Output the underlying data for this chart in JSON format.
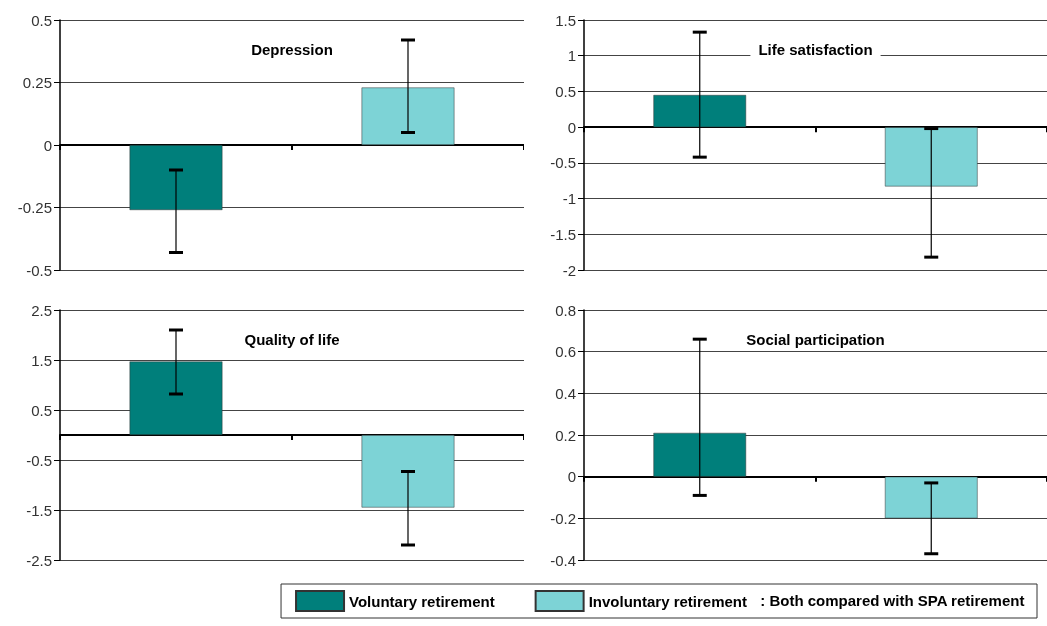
{
  "chart_data": [
    {
      "type": "bar",
      "title": "Depression",
      "categories": [
        null,
        null
      ],
      "ylim": [
        -0.5,
        0.5
      ],
      "yticks": [
        -0.5,
        -0.25,
        0,
        0.25,
        0.5
      ],
      "grid": "y",
      "legend": false,
      "tick_labels": "y",
      "series": [
        {
          "color": "#007f7b",
          "values": [
            -0.26,
            null
          ],
          "errors": [
            [
              -0.43,
              -0.1
            ],
            null
          ]
        },
        {
          "color": "#7dd3d6",
          "values": [
            null,
            0.23
          ],
          "errors": [
            null,
            [
              0.05,
              0.42
            ]
          ]
        }
      ]
    },
    {
      "type": "bar",
      "title": "Life satisfaction",
      "categories": [
        null,
        null
      ],
      "ylim": [
        -2,
        1.5
      ],
      "yticks": [
        -2,
        -1.5,
        -1,
        -0.5,
        0,
        0.5,
        1,
        1.5
      ],
      "grid": "y",
      "legend": false,
      "tick_labels": "y",
      "series": [
        {
          "color": "#007f7b",
          "values": [
            0.45,
            null
          ],
          "errors": [
            [
              -0.42,
              1.33
            ],
            null
          ]
        },
        {
          "color": "#7dd3d6",
          "values": [
            null,
            -0.83
          ],
          "errors": [
            null,
            [
              -1.82,
              -0.02
            ]
          ]
        }
      ]
    },
    {
      "type": "bar",
      "title": "Quality of life",
      "categories": [
        null,
        null
      ],
      "ylim": [
        -2.5,
        2.5
      ],
      "yticks": [
        -2.5,
        -1.5,
        -0.5,
        0.5,
        1.5,
        2.5
      ],
      "grid": "y",
      "legend": false,
      "tick_labels": "y",
      "series": [
        {
          "color": "#007f7b",
          "values": [
            1.47,
            null
          ],
          "errors": [
            [
              0.82,
              2.1
            ],
            null
          ]
        },
        {
          "color": "#7dd3d6",
          "values": [
            null,
            -1.45
          ],
          "errors": [
            null,
            [
              -2.2,
              -0.73
            ]
          ]
        }
      ]
    },
    {
      "type": "bar",
      "title": "Social participation",
      "categories": [
        null,
        null
      ],
      "ylim": [
        -0.4,
        0.8
      ],
      "yticks": [
        -0.4,
        -0.2,
        0,
        0.2,
        0.4,
        0.6,
        0.8
      ],
      "grid": "y",
      "legend": "bottom",
      "tick_labels": "y",
      "annotations": [
        ": Both compared with SPA retirement"
      ],
      "series": [
        {
          "name": "Voluntary retirement",
          "color": "#007f7b",
          "values": [
            0.21,
            null
          ],
          "errors": [
            [
              -0.09,
              0.66
            ],
            null
          ]
        },
        {
          "name": "Involuntary retirement",
          "color": "#7dd3d6",
          "values": [
            null,
            -0.2
          ],
          "errors": [
            null,
            [
              -0.37,
              -0.03
            ]
          ]
        }
      ]
    }
  ]
}
